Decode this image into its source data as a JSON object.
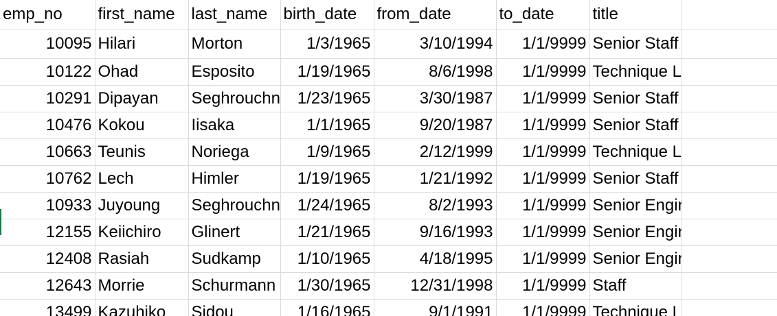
{
  "sheet": {
    "headers": [
      "emp_no",
      "first_name",
      "last_name",
      "birth_date",
      "from_date",
      "to_date",
      "title",
      ""
    ],
    "rows": [
      {
        "emp_no": "10095",
        "first_name": "Hilari",
        "last_name": "Morton",
        "birth_date": "1/3/1965",
        "from_date": "3/10/1994",
        "to_date": "1/1/9999",
        "title": "Senior Staff"
      },
      {
        "emp_no": "10122",
        "first_name": "Ohad",
        "last_name": "Esposito",
        "birth_date": "1/19/1965",
        "from_date": "8/6/1998",
        "to_date": "1/1/9999",
        "title": "Technique Leader"
      },
      {
        "emp_no": "10291",
        "first_name": "Dipayan",
        "last_name": "Seghrouchni",
        "birth_date": "1/23/1965",
        "from_date": "3/30/1987",
        "to_date": "1/1/9999",
        "title": "Senior Staff"
      },
      {
        "emp_no": "10476",
        "first_name": "Kokou",
        "last_name": "Iisaka",
        "birth_date": "1/1/1965",
        "from_date": "9/20/1987",
        "to_date": "1/1/9999",
        "title": "Senior Staff"
      },
      {
        "emp_no": "10663",
        "first_name": "Teunis",
        "last_name": "Noriega",
        "birth_date": "1/9/1965",
        "from_date": "2/12/1999",
        "to_date": "1/1/9999",
        "title": "Technique Leader"
      },
      {
        "emp_no": "10762",
        "first_name": "Lech",
        "last_name": "Himler",
        "birth_date": "1/19/1965",
        "from_date": "1/21/1992",
        "to_date": "1/1/9999",
        "title": "Senior Staff"
      },
      {
        "emp_no": "10933",
        "first_name": "Juyoung",
        "last_name": "Seghrouchni",
        "birth_date": "1/24/1965",
        "from_date": "8/2/1993",
        "to_date": "1/1/9999",
        "title": "Senior Engineer"
      },
      {
        "emp_no": "12155",
        "first_name": "Keiichiro",
        "last_name": "Glinert",
        "birth_date": "1/21/1965",
        "from_date": "9/16/1993",
        "to_date": "1/1/9999",
        "title": "Senior Engineer"
      },
      {
        "emp_no": "12408",
        "first_name": "Rasiah",
        "last_name": "Sudkamp",
        "birth_date": "1/10/1965",
        "from_date": "4/18/1995",
        "to_date": "1/1/9999",
        "title": "Senior Engineer"
      },
      {
        "emp_no": "12643",
        "first_name": "Morrie",
        "last_name": "Schurmann",
        "birth_date": "1/30/1965",
        "from_date": "12/31/1998",
        "to_date": "1/1/9999",
        "title": "Staff"
      },
      {
        "emp_no": "13499",
        "first_name": "Kazuhiko",
        "last_name": "Sidou",
        "birth_date": "1/16/1965",
        "from_date": "9/1/1991",
        "to_date": "1/1/9999",
        "title": "Technique Leader"
      }
    ]
  }
}
